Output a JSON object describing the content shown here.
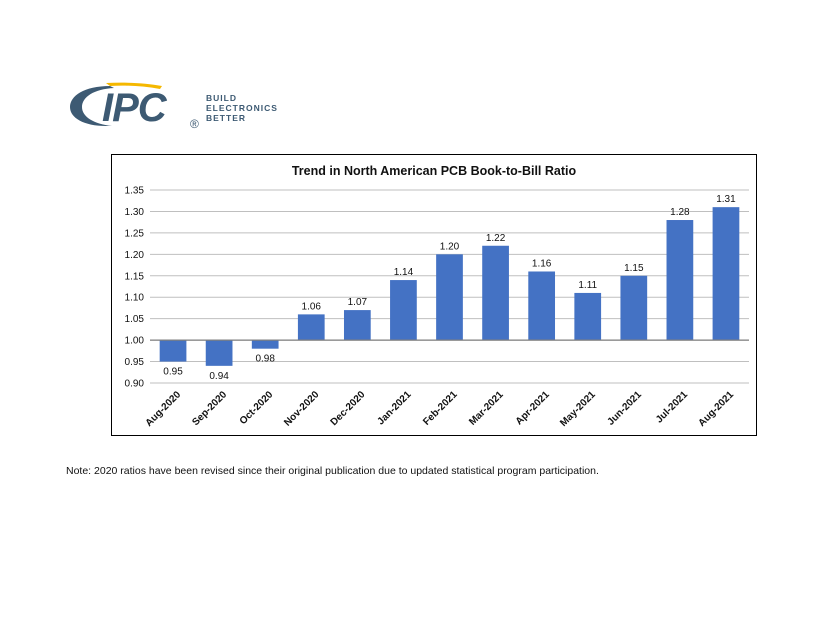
{
  "logo": {
    "wordmark": "IPC",
    "tagline": [
      "BUILD",
      "ELECTRONICS",
      "BETTER"
    ],
    "registered": "®",
    "colors": {
      "primary": "#3d5a73",
      "accent": "#f5b800"
    }
  },
  "chart_data": {
    "type": "bar",
    "title": "Trend in North American PCB Book-to-Bill Ratio",
    "xlabel": "",
    "ylabel": "",
    "baseline": 1.0,
    "ylim": [
      0.9,
      1.35
    ],
    "yticks": [
      "0.90",
      "0.95",
      "1.00",
      "1.05",
      "1.10",
      "1.15",
      "1.20",
      "1.25",
      "1.30",
      "1.35"
    ],
    "grid": true,
    "bar_color": "#4472c4",
    "categories": [
      "Aug-2020",
      "Sep-2020",
      "Oct-2020",
      "Nov-2020",
      "Dec-2020",
      "Jan-2021",
      "Feb-2021",
      "Mar-2021",
      "Apr-2021",
      "May-2021",
      "Jun-2021",
      "Jul-2021",
      "Aug-2021"
    ],
    "values": [
      0.95,
      0.94,
      0.98,
      1.06,
      1.07,
      1.14,
      1.2,
      1.22,
      1.16,
      1.11,
      1.15,
      1.28,
      1.31
    ],
    "labels": [
      "0.95",
      "0.94",
      "0.98",
      "1.06",
      "1.07",
      "1.14",
      "1.20",
      "1.22",
      "1.16",
      "1.11",
      "1.15",
      "1.28",
      "1.31"
    ]
  },
  "note": "Note: 2020 ratios have been revised since their original publication due to updated statistical program participation."
}
